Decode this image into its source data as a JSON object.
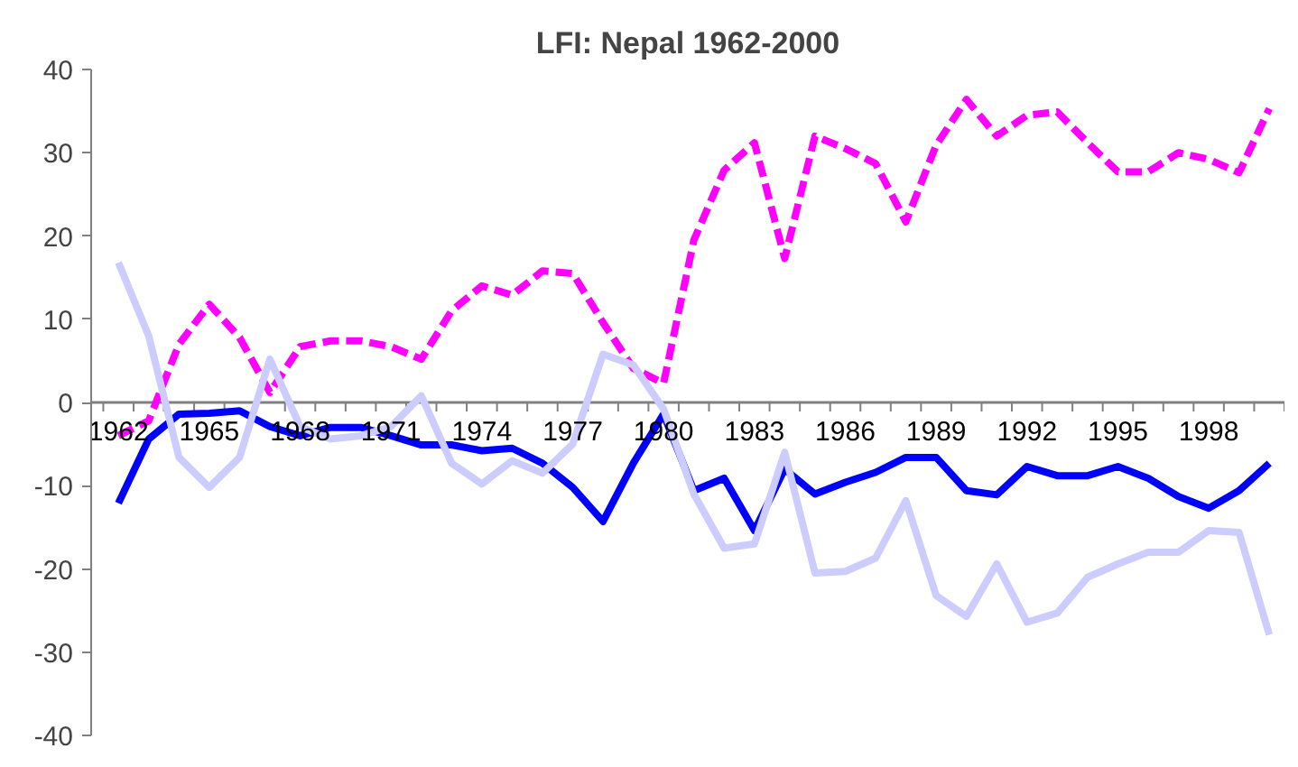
{
  "chart_data": {
    "type": "line",
    "title": "LFI: Nepal 1962-2000",
    "categories": [
      "1962",
      null,
      null,
      "1965",
      null,
      null,
      "1968",
      null,
      null,
      "1971",
      null,
      null,
      "1974",
      null,
      null,
      "1977",
      null,
      null,
      "1980",
      null,
      null,
      "1983",
      null,
      null,
      "1986",
      null,
      null,
      "1989",
      null,
      null,
      "1992",
      null,
      null,
      "1995",
      null,
      null,
      "1998",
      null,
      null
    ],
    "series": [
      {
        "color": "#ff00ff",
        "line_style": "dashed",
        "values": [
          -4,
          -2.2,
          7,
          11.8,
          7.8,
          1.2,
          6.7,
          7.4,
          7.4,
          6.7,
          5.2,
          11,
          14,
          12.9,
          15.8,
          15.5,
          9.6,
          4.1,
          2.3,
          19.5,
          27.9,
          31.2,
          17.3,
          32,
          30.5,
          28.7,
          21.7,
          30.9,
          36.4,
          32,
          34.5,
          34.9,
          31.2,
          27.7,
          27.7,
          30,
          29.2,
          27.6,
          35.3
        ]
      },
      {
        "color": "#0000ff",
        "line_style": "solid",
        "values": [
          -12.1,
          -4.4,
          -1.4,
          -1.3,
          -1,
          -2.9,
          -4,
          -3,
          -3,
          -4,
          -5.1,
          -5.1,
          -5.8,
          -5.5,
          -7.3,
          -10.2,
          -14.3,
          -7.3,
          -1.4,
          -10.6,
          -9.1,
          -15.4,
          -8,
          -11,
          -9.6,
          -8.4,
          -6.6,
          -6.6,
          -10.6,
          -11.1,
          -7.7,
          -8.8,
          -8.8,
          -7.7,
          -9.1,
          -11.3,
          -12.7,
          -10.6,
          -7.3
        ]
      },
      {
        "color": "#ccccff",
        "line_style": "solid",
        "values": [
          16.8,
          8,
          -6.6,
          -10.2,
          -6.6,
          5.2,
          -2.9,
          -4.4,
          -4,
          -2.9,
          0.8,
          -7.3,
          -9.8,
          -7,
          -8.5,
          -5,
          5.8,
          4.5,
          -0.8,
          -11,
          -17.5,
          -17,
          -6,
          -20.5,
          -20.3,
          -18.7,
          -11.8,
          -23.2,
          -25.7,
          -19.4,
          -26.4,
          -25.3,
          -21,
          -19.4,
          -18,
          -18,
          -15.4,
          -15.6,
          -27.9
        ]
      }
    ],
    "ylim": [
      -40,
      40
    ],
    "yticks": [
      -40,
      -30,
      -20,
      -10,
      0,
      10,
      20,
      30,
      40
    ],
    "grid": false,
    "marker": "none"
  }
}
